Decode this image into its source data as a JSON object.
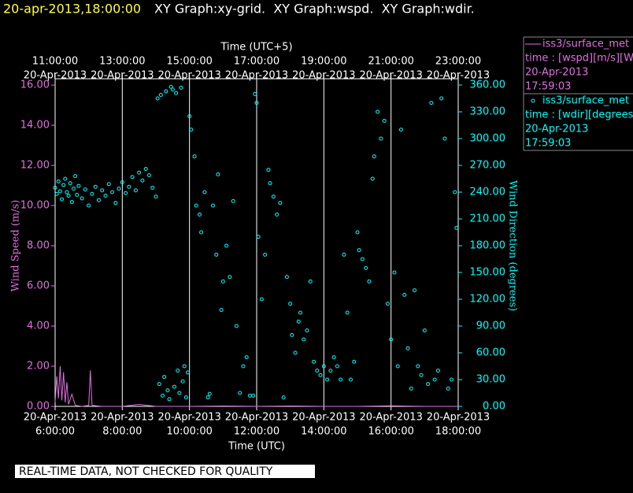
{
  "chart_data": {
    "type": "scatter",
    "title": "20-apr-2013,18:00:00",
    "subtitle": "XY Graph:xy-grid.  XY Graph:wspd.  XY Graph:wdir.",
    "xlabel": "Time (UTC)",
    "x2label": "Time (UTC+5)",
    "ylabel": "Wind Speed (m/s)",
    "y2label": "Wind Direction (degrees)",
    "note": "REAL-TIME DATA, NOT CHECKED FOR QUALITY",
    "grid": true,
    "legend_position": "right",
    "xlim": [
      6,
      18
    ],
    "xticks": [
      {
        "value": 6,
        "label": "6:00:00"
      },
      {
        "value": 8,
        "label": "8:00:00"
      },
      {
        "value": 10,
        "label": "10:00:00"
      },
      {
        "value": 12,
        "label": "12:00:00"
      },
      {
        "value": 14,
        "label": "14:00:00"
      },
      {
        "value": 16,
        "label": "16:00:00"
      },
      {
        "value": 18,
        "label": "18:00:00"
      }
    ],
    "xtick_dates": [
      "20-Apr-2013",
      "20-Apr-2013",
      "20-Apr-2013",
      "20-Apr-2013",
      "20-Apr-2013",
      "20-Apr-2013",
      "20-Apr-2013"
    ],
    "x2ticks": [
      {
        "value": 6,
        "label": "11:00:00"
      },
      {
        "value": 8,
        "label": "13:00:00"
      },
      {
        "value": 10,
        "label": "15:00:00"
      },
      {
        "value": 12,
        "label": "17:00:00"
      },
      {
        "value": 14,
        "label": "19:00:00"
      },
      {
        "value": 16,
        "label": "21:00:00"
      },
      {
        "value": 18,
        "label": "23:00:00"
      }
    ],
    "x2tick_dates": [
      "20-Apr-2013",
      "20-Apr-2013",
      "20-Apr-2013",
      "20-Apr-2013",
      "20-Apr-2013",
      "20-Apr-2013",
      "20-Apr-2013"
    ],
    "ylim": [
      0,
      16
    ],
    "yticks": [
      {
        "value": 0,
        "label": "0.00"
      },
      {
        "value": 2,
        "label": "2.00"
      },
      {
        "value": 4,
        "label": "4.00"
      },
      {
        "value": 6,
        "label": "6.00"
      },
      {
        "value": 8,
        "label": "8.00"
      },
      {
        "value": 10,
        "label": "10.00"
      },
      {
        "value": 12,
        "label": "12.00"
      },
      {
        "value": 14,
        "label": "14.00"
      },
      {
        "value": 16,
        "label": "16.00"
      }
    ],
    "y2lim": [
      0,
      360
    ],
    "y2ticks": [
      {
        "value": 0,
        "label": "0.00"
      },
      {
        "value": 30,
        "label": "30.00"
      },
      {
        "value": 60,
        "label": "60.00"
      },
      {
        "value": 90,
        "label": "90.00"
      },
      {
        "value": 120,
        "label": "120.00"
      },
      {
        "value": 150,
        "label": "150.00"
      },
      {
        "value": 180,
        "label": "180.00"
      },
      {
        "value": 210,
        "label": "210.00"
      },
      {
        "value": 240,
        "label": "240.00"
      },
      {
        "value": 270,
        "label": "270.00"
      },
      {
        "value": 300,
        "label": "300.00"
      },
      {
        "value": 330,
        "label": "330.00"
      },
      {
        "value": 360,
        "label": "360.00"
      }
    ],
    "series": [
      {
        "name": "iss3/surface_met",
        "type": "line",
        "color": "#e070e0",
        "legend_details": [
          "time : [wspd][m/s][Wind",
          "20-Apr-2013",
          "17:59:03"
        ],
        "x": [
          6.0,
          6.05,
          6.1,
          6.15,
          6.2,
          6.25,
          6.3,
          6.35,
          6.4,
          6.5,
          6.6,
          6.8,
          7.0,
          7.05,
          7.1,
          7.4,
          8.0,
          8.5,
          9.0,
          10.0,
          11.0,
          12.0,
          13.0,
          14.0,
          15.0,
          16.0,
          17.0,
          18.0
        ],
        "values": [
          0.2,
          1.5,
          0.4,
          2.0,
          0.3,
          1.7,
          0.2,
          1.2,
          0.1,
          0.6,
          0.05,
          0,
          0.05,
          1.8,
          0.05,
          0,
          0,
          0.1,
          0,
          0,
          0.02,
          0,
          0.02,
          0,
          0,
          0.03,
          0,
          0
        ]
      },
      {
        "name": "iss3/surface_met",
        "type": "scatter",
        "axis": "y2",
        "color": "#00ffff",
        "legend_details": [
          "time : [wdir][degrees][V",
          "20-Apr-2013",
          "17:59:03"
        ],
        "x": [
          6.0,
          6.05,
          6.1,
          6.15,
          6.2,
          6.25,
          6.3,
          6.35,
          6.4,
          6.45,
          6.5,
          6.55,
          6.6,
          6.65,
          6.7,
          6.8,
          6.9,
          7.0,
          7.1,
          7.2,
          7.3,
          7.4,
          7.5,
          7.6,
          7.7,
          7.8,
          7.9,
          8.0,
          8.1,
          8.2,
          8.3,
          8.4,
          8.5,
          8.6,
          8.7,
          8.8,
          8.9,
          9.0,
          9.05,
          9.15,
          9.3,
          9.45,
          9.5,
          9.6,
          9.75,
          9.1,
          9.2,
          9.25,
          9.35,
          9.4,
          9.55,
          9.65,
          9.7,
          9.8,
          9.85,
          9.9,
          9.95,
          10.0,
          10.05,
          10.15,
          10.2,
          10.3,
          10.35,
          10.45,
          10.55,
          10.6,
          10.7,
          10.8,
          10.85,
          10.95,
          11.0,
          11.1,
          11.2,
          11.3,
          11.4,
          11.5,
          11.6,
          11.7,
          11.8,
          11.9,
          11.95,
          12.0,
          12.05,
          12.15,
          12.25,
          12.35,
          12.4,
          12.5,
          12.6,
          12.7,
          12.8,
          12.9,
          13.0,
          13.05,
          13.15,
          13.25,
          13.3,
          13.4,
          13.5,
          13.6,
          13.7,
          13.8,
          13.9,
          14.0,
          14.1,
          14.2,
          14.3,
          14.4,
          14.5,
          14.6,
          14.7,
          14.8,
          14.9,
          15.0,
          15.05,
          15.15,
          15.25,
          15.35,
          15.45,
          15.5,
          15.6,
          15.7,
          15.8,
          15.9,
          16.0,
          16.1,
          16.2,
          16.3,
          16.4,
          16.5,
          16.6,
          16.7,
          16.8,
          16.9,
          17.0,
          17.1,
          17.2,
          17.3,
          17.4,
          17.5,
          17.6,
          17.7,
          17.8,
          17.9,
          17.95
        ],
        "values": [
          245,
          238,
          252,
          241,
          232,
          248,
          255,
          240,
          236,
          250,
          229,
          244,
          258,
          237,
          247,
          233,
          243,
          225,
          238,
          246,
          231,
          242,
          236,
          249,
          240,
          228,
          244,
          251,
          239,
          246,
          257,
          242,
          262,
          253,
          266,
          259,
          245,
          235,
          345,
          349,
          353,
          358,
          355,
          351,
          357,
          25,
          12,
          33,
          18,
          8,
          22,
          40,
          15,
          28,
          45,
          10,
          38,
          325,
          310,
          280,
          225,
          215,
          195,
          240,
          10,
          14,
          225,
          170,
          260,
          108,
          140,
          180,
          145,
          230,
          90,
          15,
          45,
          55,
          12,
          12,
          350,
          340,
          190,
          120,
          170,
          265,
          250,
          235,
          215,
          228,
          10,
          145,
          115,
          80,
          60,
          95,
          105,
          75,
          85,
          140,
          50,
          40,
          35,
          45,
          30,
          40,
          55,
          45,
          30,
          170,
          105,
          30,
          50,
          195,
          175,
          165,
          155,
          140,
          255,
          280,
          330,
          300,
          320,
          115,
          75,
          150,
          45,
          310,
          125,
          65,
          20,
          130,
          45,
          35,
          85,
          25,
          340,
          30,
          40,
          345,
          300,
          20,
          30,
          240,
          200
        ]
      }
    ]
  }
}
